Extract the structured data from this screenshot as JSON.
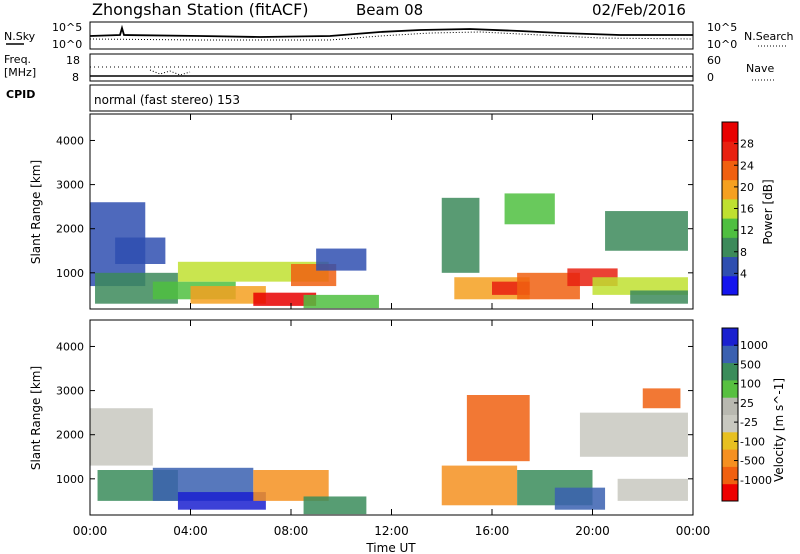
{
  "header": {
    "station": "Zhongshan Station (fitACF)",
    "beam": "Beam 08",
    "date": "02/Feb/2016"
  },
  "noise_panel": {
    "left_label": "N.Sky",
    "left_ticks": [
      "10^5",
      "10^0"
    ],
    "right_ticks": [
      "10^5",
      "10^0"
    ],
    "right_label": "N.Search"
  },
  "freq_panel": {
    "left_label_1": "Freq.",
    "left_label_2": "[MHz]",
    "left_ticks": [
      "18",
      "8"
    ],
    "right_ticks": [
      "60",
      "0"
    ],
    "right_label": "Nave"
  },
  "cpid": {
    "label": "CPID",
    "mode": "normal (fast stereo) 153"
  },
  "x_axis": {
    "label": "Time UT",
    "ticks": [
      "00:00",
      "04:00",
      "08:00",
      "12:00",
      "16:00",
      "20:00",
      "00:00"
    ]
  },
  "colors": {
    "power": [
      "#1515ee",
      "#2f4fb0",
      "#3c8a5a",
      "#4fbf40",
      "#bfe030",
      "#f5a020",
      "#f06010",
      "#e82010",
      "#e80000"
    ],
    "velocity": [
      "#ee0000",
      "#f06010",
      "#f59020",
      "#e7c020",
      "#c8c8c0",
      "#b8b8b0",
      "#58c040",
      "#3a8c5a",
      "#3a60b0",
      "#1a20d0"
    ]
  },
  "chart_data": [
    {
      "type": "heatmap",
      "title": "",
      "xlabel": "Time UT",
      "ylabel": "Slant Range [km]",
      "xlim": [
        0,
        24
      ],
      "ylim": [
        180,
        4600
      ],
      "yticks": [
        "1000",
        "2000",
        "3000",
        "4000"
      ],
      "colorbar": {
        "label": "Power [dB]",
        "ticks": [
          "4",
          "8",
          "12",
          "16",
          "20",
          "24",
          "28"
        ],
        "range": [
          0,
          32
        ]
      },
      "regions": [
        {
          "t0": 0.0,
          "t1": 2.2,
          "r0": 700,
          "r1": 2600,
          "c": 1
        },
        {
          "t0": 0.2,
          "t1": 3.5,
          "r0": 300,
          "r1": 1000,
          "c": 2
        },
        {
          "t0": 1.0,
          "t1": 3.0,
          "r0": 1200,
          "r1": 1800,
          "c": 1
        },
        {
          "t0": 2.5,
          "t1": 5.8,
          "r0": 400,
          "r1": 800,
          "c": 3
        },
        {
          "t0": 3.5,
          "t1": 9.5,
          "r0": 800,
          "r1": 1250,
          "c": 4
        },
        {
          "t0": 4.0,
          "t1": 7.0,
          "r0": 300,
          "r1": 700,
          "c": 5
        },
        {
          "t0": 6.5,
          "t1": 9.0,
          "r0": 250,
          "r1": 550,
          "c": 8
        },
        {
          "t0": 8.0,
          "t1": 9.8,
          "r0": 700,
          "r1": 1200,
          "c": 6
        },
        {
          "t0": 9.0,
          "t1": 11.0,
          "r0": 1050,
          "r1": 1550,
          "c": 1
        },
        {
          "t0": 8.5,
          "t1": 11.5,
          "r0": 200,
          "r1": 500,
          "c": 3
        },
        {
          "t0": 14.0,
          "t1": 15.5,
          "r0": 1000,
          "r1": 2700,
          "c": 2
        },
        {
          "t0": 14.5,
          "t1": 17.5,
          "r0": 400,
          "r1": 900,
          "c": 5
        },
        {
          "t0": 16.0,
          "t1": 17.5,
          "r0": 500,
          "r1": 800,
          "c": 7
        },
        {
          "t0": 17.0,
          "t1": 19.5,
          "r0": 400,
          "r1": 1000,
          "c": 6
        },
        {
          "t0": 19.0,
          "t1": 21.0,
          "r0": 700,
          "r1": 1100,
          "c": 7
        },
        {
          "t0": 20.0,
          "t1": 23.8,
          "r0": 500,
          "r1": 900,
          "c": 4
        },
        {
          "t0": 20.5,
          "t1": 23.8,
          "r0": 1500,
          "r1": 2400,
          "c": 2
        },
        {
          "t0": 16.5,
          "t1": 18.5,
          "r0": 2100,
          "r1": 2800,
          "c": 3
        },
        {
          "t0": 21.5,
          "t1": 23.8,
          "r0": 300,
          "r1": 600,
          "c": 2
        }
      ]
    },
    {
      "type": "heatmap",
      "title": "",
      "xlabel": "Time UT",
      "ylabel": "Slant Range [km]",
      "xlim": [
        0,
        24
      ],
      "ylim": [
        180,
        4600
      ],
      "yticks": [
        "1000",
        "2000",
        "3000",
        "4000"
      ],
      "colorbar": {
        "label": "Velocity [m s^-1]",
        "ticks": [
          "1000",
          "500",
          "100",
          "25",
          "-25",
          "-100",
          "-500",
          "-1000"
        ]
      },
      "regions": [
        {
          "t0": 0.0,
          "t1": 2.5,
          "r0": 1300,
          "r1": 2600,
          "c": 4
        },
        {
          "t0": 0.3,
          "t1": 3.5,
          "r0": 500,
          "r1": 1200,
          "c": 7
        },
        {
          "t0": 2.5,
          "t1": 6.5,
          "r0": 500,
          "r1": 1250,
          "c": 8
        },
        {
          "t0": 3.5,
          "t1": 7.0,
          "r0": 300,
          "r1": 700,
          "c": 9
        },
        {
          "t0": 6.5,
          "t1": 9.5,
          "r0": 500,
          "r1": 1200,
          "c": 2
        },
        {
          "t0": 8.5,
          "t1": 11.0,
          "r0": 200,
          "r1": 600,
          "c": 7
        },
        {
          "t0": 14.0,
          "t1": 17.0,
          "r0": 400,
          "r1": 1300,
          "c": 2
        },
        {
          "t0": 15.0,
          "t1": 17.5,
          "r0": 1400,
          "r1": 2900,
          "c": 1
        },
        {
          "t0": 17.0,
          "t1": 20.0,
          "r0": 400,
          "r1": 1200,
          "c": 7
        },
        {
          "t0": 18.5,
          "t1": 20.5,
          "r0": 300,
          "r1": 800,
          "c": 8
        },
        {
          "t0": 19.5,
          "t1": 23.8,
          "r0": 1500,
          "r1": 2500,
          "c": 4
        },
        {
          "t0": 21.0,
          "t1": 23.8,
          "r0": 500,
          "r1": 1000,
          "c": 4
        },
        {
          "t0": 22.0,
          "t1": 23.5,
          "r0": 2600,
          "r1": 3050,
          "c": 1
        }
      ]
    }
  ]
}
